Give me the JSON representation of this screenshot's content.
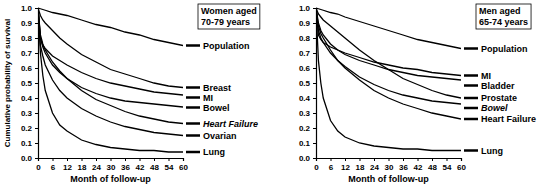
{
  "chart_data": [
    {
      "type": "line",
      "title": "Women aged 70-79 years",
      "x_label": "Month of follow-up",
      "y_label": "Cumulative probability of survival",
      "x": [
        0,
        1,
        2,
        3,
        6,
        9,
        12,
        18,
        24,
        30,
        36,
        42,
        48,
        54,
        60
      ],
      "xlim": [
        0,
        60
      ],
      "xticks": [
        0,
        6,
        12,
        18,
        24,
        30,
        36,
        42,
        48,
        54,
        60
      ],
      "ylim": [
        0,
        1
      ],
      "yticks": [
        {
          "value": 0,
          "label": "0.0"
        },
        0.1,
        0.2,
        0.3,
        0.4,
        0.5,
        0.6,
        0.7,
        0.8,
        0.9,
        {
          "value": 1,
          "label": "1.0"
        }
      ],
      "series": [
        {
          "name": "Population",
          "color": "#000000",
          "values": [
            1,
            0.995,
            0.99,
            0.985,
            0.97,
            0.96,
            0.95,
            0.92,
            0.89,
            0.87,
            0.84,
            0.82,
            0.79,
            0.77,
            0.75
          ]
        },
        {
          "name": "Breast",
          "color": "#000000",
          "values": [
            1,
            0.95,
            0.92,
            0.9,
            0.85,
            0.8,
            0.76,
            0.69,
            0.64,
            0.59,
            0.56,
            0.53,
            0.5,
            0.48,
            0.47
          ]
        },
        {
          "name": "MI",
          "color": "#000000",
          "values": [
            1,
            0.8,
            0.75,
            0.73,
            0.68,
            0.65,
            0.62,
            0.57,
            0.53,
            0.5,
            0.48,
            0.46,
            0.44,
            0.43,
            0.42
          ]
        },
        {
          "name": "Bowel",
          "color": "#000000",
          "values": [
            1,
            0.8,
            0.74,
            0.7,
            0.62,
            0.57,
            0.53,
            0.47,
            0.43,
            0.4,
            0.38,
            0.37,
            0.36,
            0.35,
            0.34
          ]
        },
        {
          "name": "Heart Failure",
          "color": "#000000",
          "values": [
            1,
            0.82,
            0.76,
            0.72,
            0.64,
            0.58,
            0.53,
            0.45,
            0.39,
            0.35,
            0.31,
            0.28,
            0.26,
            0.24,
            0.23
          ]
        },
        {
          "name": "Ovarian",
          "color": "#000000",
          "values": [
            1,
            0.75,
            0.68,
            0.62,
            0.52,
            0.45,
            0.4,
            0.33,
            0.28,
            0.24,
            0.21,
            0.19,
            0.17,
            0.16,
            0.15
          ]
        },
        {
          "name": "Lung",
          "color": "#000000",
          "values": [
            1,
            0.7,
            0.55,
            0.45,
            0.3,
            0.22,
            0.18,
            0.12,
            0.09,
            0.07,
            0.06,
            0.05,
            0.05,
            0.04,
            0.04
          ]
        }
      ]
    },
    {
      "type": "line",
      "title": "Men aged 65-74 years",
      "x_label": "Month of follow-up",
      "x": [
        0,
        1,
        2,
        3,
        6,
        9,
        12,
        18,
        24,
        30,
        36,
        42,
        48,
        54,
        60
      ],
      "xlim": [
        0,
        60
      ],
      "xticks": [
        0,
        6,
        12,
        18,
        24,
        30,
        36,
        42,
        48,
        54,
        60
      ],
      "ylim": [
        0,
        1
      ],
      "yticks": [
        {
          "value": 0,
          "label": "0.0"
        },
        0.1,
        0.2,
        0.3,
        0.4,
        0.5,
        0.6,
        0.7,
        0.8,
        0.9,
        {
          "value": 1,
          "label": "1.0"
        }
      ],
      "series": [
        {
          "name": "Population",
          "color": "#000000",
          "values": [
            1,
            0.995,
            0.99,
            0.985,
            0.97,
            0.96,
            0.94,
            0.91,
            0.88,
            0.85,
            0.82,
            0.79,
            0.77,
            0.75,
            0.73
          ]
        },
        {
          "name": "Bladder",
          "color": "#000000",
          "values": [
            1,
            0.9,
            0.85,
            0.82,
            0.76,
            0.72,
            0.69,
            0.65,
            0.62,
            0.59,
            0.57,
            0.55,
            0.54,
            0.53,
            0.52
          ]
        },
        {
          "name": "MI",
          "color": "#000000",
          "values": [
            1,
            0.82,
            0.79,
            0.77,
            0.74,
            0.72,
            0.7,
            0.67,
            0.64,
            0.62,
            0.6,
            0.59,
            0.57,
            0.56,
            0.55
          ]
        },
        {
          "name": "Prostate",
          "color": "#000000",
          "values": [
            1,
            0.96,
            0.94,
            0.92,
            0.88,
            0.84,
            0.8,
            0.72,
            0.65,
            0.59,
            0.53,
            0.49,
            0.45,
            0.42,
            0.4
          ]
        },
        {
          "name": "Bowel",
          "color": "#000000",
          "values": [
            1,
            0.85,
            0.8,
            0.77,
            0.7,
            0.65,
            0.61,
            0.54,
            0.49,
            0.45,
            0.42,
            0.4,
            0.38,
            0.37,
            0.36
          ]
        },
        {
          "name": "Heart Failure",
          "color": "#000000",
          "values": [
            1,
            0.88,
            0.83,
            0.8,
            0.72,
            0.65,
            0.6,
            0.52,
            0.45,
            0.4,
            0.36,
            0.33,
            0.3,
            0.28,
            0.26
          ]
        },
        {
          "name": "Lung",
          "color": "#000000",
          "values": [
            1,
            0.65,
            0.5,
            0.4,
            0.25,
            0.18,
            0.14,
            0.1,
            0.08,
            0.07,
            0.06,
            0.06,
            0.05,
            0.05,
            0.05
          ]
        }
      ]
    }
  ]
}
